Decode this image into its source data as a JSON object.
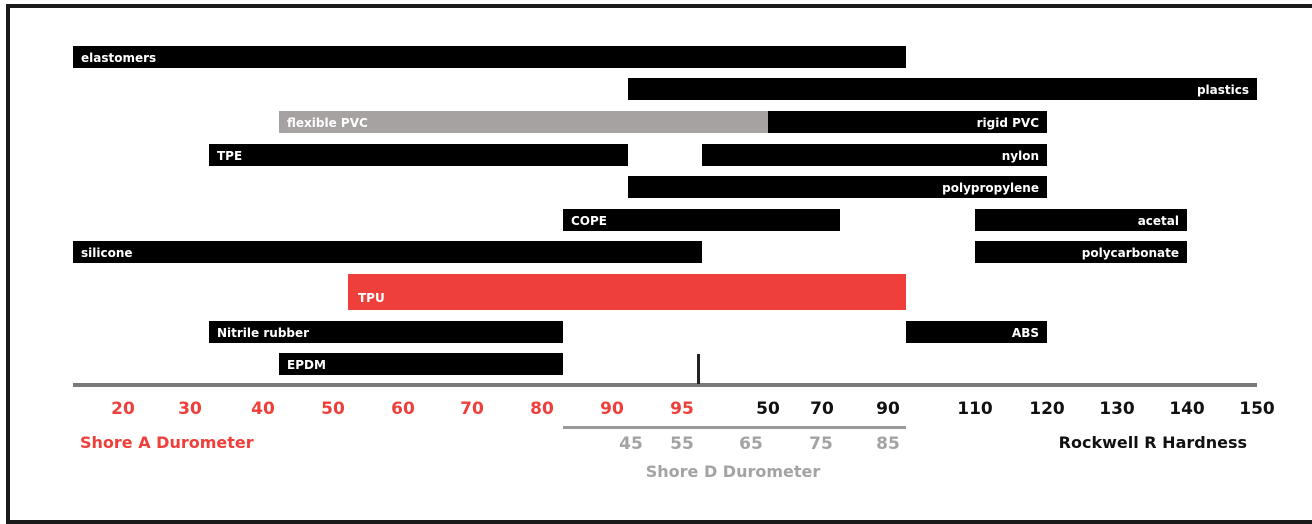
{
  "chart_data": {
    "type": "bar",
    "orientation": "horizontal-range",
    "colors": {
      "bar": "#000000",
      "flexible_pvc": "#a6a2a2",
      "tpu": "#ef3f3a",
      "shore_a": "#ef3f3a",
      "shore_d": "#a3a3a3",
      "rockwell": "#111111"
    },
    "bars": [
      {
        "label": "elastomers",
        "start": "15 Shore A",
        "end": "90 Rockwell R",
        "label_align": "left",
        "color": "#000000"
      },
      {
        "label": "plastics",
        "start": "90 Shore A",
        "end": "150 Rockwell R",
        "label_align": "right",
        "color": "#000000"
      },
      {
        "label": "flexible PVC",
        "start": "45 Shore A",
        "end": "50 Rockwell R",
        "label_align": "left",
        "color": "#a6a2a2"
      },
      {
        "label": "rigid PVC",
        "start": "50 Rockwell R",
        "end": "120 Rockwell R",
        "label_align": "right",
        "color": "#000000"
      },
      {
        "label": "TPE",
        "start": "35 Shore A",
        "end": "90 Shore A",
        "label_align": "left",
        "color": "#000000"
      },
      {
        "label": "nylon",
        "start": "95 Shore A",
        "end": "120 Rockwell R",
        "label_align": "right",
        "color": "#000000"
      },
      {
        "label": "polypropylene",
        "start": "90 Shore A",
        "end": "120 Rockwell R",
        "label_align": "right",
        "color": "#000000"
      },
      {
        "label": "COPE",
        "start": "80 Shore A",
        "end": "70 Rockwell R",
        "label_align": "left",
        "color": "#000000"
      },
      {
        "label": "acetal",
        "start": "110 Rockwell R",
        "end": "140 Rockwell R",
        "label_align": "right",
        "color": "#000000"
      },
      {
        "label": "silicone",
        "start": "15 Shore A",
        "end": "95 Shore A",
        "label_align": "left",
        "color": "#000000"
      },
      {
        "label": "polycarbonate",
        "start": "110 Rockwell R",
        "end": "140 Rockwell R",
        "label_align": "right",
        "color": "#000000"
      },
      {
        "label": "TPU",
        "start": "50 Shore A",
        "end": "90 Rockwell R",
        "label_align": "left",
        "color": "#ef3f3a"
      },
      {
        "label": "Nitrile rubber",
        "start": "35 Shore A",
        "end": "80 Shore A",
        "label_align": "left",
        "color": "#000000"
      },
      {
        "label": "ABS",
        "start": "90 Rockwell R",
        "end": "120 Rockwell R",
        "label_align": "right",
        "color": "#000000"
      },
      {
        "label": "EPDM",
        "start": "45 Shore A",
        "end": "80 Shore A",
        "label_align": "left",
        "color": "#000000"
      }
    ],
    "scales": {
      "shore_a": {
        "title": "Shore A Durometer",
        "ticks": [
          "20",
          "30",
          "40",
          "50",
          "60",
          "70",
          "80",
          "90",
          "95"
        ]
      },
      "rockwell_r": {
        "title": "Rockwell R Hardness",
        "ticks": [
          "50",
          "70",
          "90",
          "110",
          "120",
          "130",
          "140",
          "150"
        ]
      },
      "shore_d": {
        "title": "Shore D Durometer",
        "ticks": [
          "45",
          "55",
          "65",
          "75",
          "85"
        ]
      }
    },
    "grid": false,
    "legend": "none"
  }
}
